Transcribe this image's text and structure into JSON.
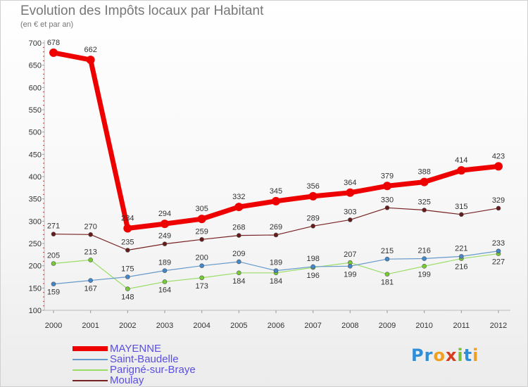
{
  "chart_data": {
    "type": "line",
    "title": "Evolution des Impôts locaux par Habitant",
    "subtitle": "(en € et par an)",
    "xlabel": "",
    "ylabel": "",
    "x": [
      "2000",
      "2001",
      "2002",
      "2003",
      "2004",
      "2005",
      "2006",
      "2007",
      "2008",
      "2009",
      "2010",
      "2011",
      "2012"
    ],
    "ylim": [
      100,
      700
    ],
    "yticks": [
      100,
      150,
      200,
      250,
      300,
      350,
      400,
      450,
      500,
      550,
      600,
      650,
      700
    ],
    "grid": false,
    "legend_position": "bottom-left",
    "series": [
      {
        "name": "MAYENNE",
        "color": "#ee0000",
        "values": [
          678,
          662,
          284,
          294,
          305,
          332,
          345,
          356,
          364,
          379,
          388,
          414,
          423
        ],
        "labels": [
          "678",
          "662",
          "284",
          "294",
          "305",
          "332",
          "345",
          "356",
          "364",
          "379",
          "388",
          "414",
          "423"
        ]
      },
      {
        "name": "Saint-Baudelle",
        "color": "#6699cc",
        "values": [
          159,
          167,
          175,
          189,
          200,
          209,
          189,
          198,
          199,
          215,
          216,
          221,
          233
        ],
        "labels": [
          "159",
          "167",
          "175",
          "189",
          "200",
          "209",
          "189",
          "198",
          "199",
          "215",
          "216",
          "221",
          "233"
        ]
      },
      {
        "name": "Parigné-sur-Braye",
        "color": "#99dd66",
        "values": [
          205,
          213,
          148,
          164,
          173,
          184,
          184,
          196,
          207,
          181,
          199,
          216,
          227
        ],
        "labels": [
          "205",
          "213",
          "148",
          "164",
          "173",
          "184",
          "184",
          "196",
          "207",
          "181",
          "199",
          "216",
          "227"
        ]
      },
      {
        "name": "Moulay",
        "color": "#772222",
        "values": [
          271,
          270,
          235,
          249,
          259,
          268,
          269,
          289,
          303,
          330,
          325,
          315,
          329
        ],
        "labels": [
          "271",
          "270",
          "235",
          "249",
          "259",
          "268",
          "269",
          "289",
          "303",
          "330",
          "325",
          "315",
          "329"
        ]
      }
    ]
  },
  "brand": {
    "text": "Proxiti",
    "letters": [
      "P",
      "r",
      "o",
      "x",
      "i",
      "t",
      "i"
    ],
    "colors": [
      "#2e8fd8",
      "#2e8fd8",
      "#f0a020",
      "#d63c1e",
      "#7bbf3a",
      "#2e8fd8",
      "#f0a020"
    ]
  }
}
